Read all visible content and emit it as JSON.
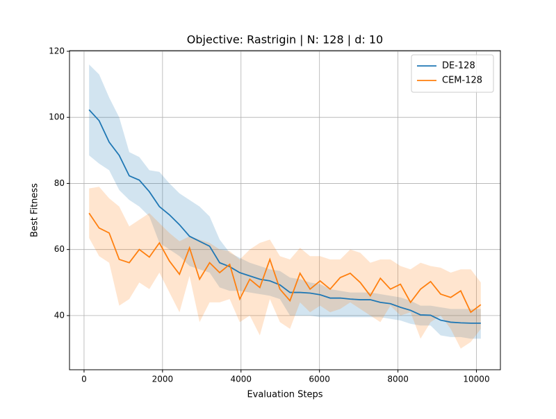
{
  "chart_data": {
    "type": "line",
    "title": "Objective: Rastrigin | N: 128 | d: 10",
    "x_label": "Evaluation Steps",
    "y_label": "Best Fitness",
    "x": [
      128,
      384,
      640,
      896,
      1152,
      1408,
      1664,
      1920,
      2176,
      2432,
      2688,
      2944,
      3200,
      3456,
      3712,
      3968,
      4224,
      4480,
      4736,
      4992,
      5248,
      5504,
      5760,
      6016,
      6272,
      6528,
      6784,
      7040,
      7296,
      7552,
      7808,
      8064,
      8320,
      8576,
      8832,
      9088,
      9344,
      9600,
      9856,
      10112
    ],
    "xlim": [
      -371,
      10611
    ],
    "xticks": [
      0,
      2000,
      4000,
      6000,
      8000,
      10000
    ],
    "ylim": [
      23.6,
      120.2
    ],
    "yticks": [
      40,
      60,
      80,
      100,
      120
    ],
    "grid": true,
    "legend": "upper right",
    "series": [
      {
        "name": "DE-128",
        "color": "#1f77b4",
        "values": [
          102.3,
          99,
          92.5,
          88.5,
          82.3,
          81,
          77.5,
          73,
          70.5,
          67.5,
          64,
          62.5,
          61,
          56,
          54.8,
          53,
          52,
          51,
          50.5,
          49.3,
          47,
          47,
          46.8,
          46.3,
          45.3,
          45.3,
          45,
          44.8,
          44.8,
          44,
          43.6,
          42.5,
          41.6,
          40.2,
          40.1,
          38.6,
          38,
          37.8,
          37.7,
          37.7
        ],
        "upper": [
          116,
          113,
          106,
          100,
          89.5,
          88,
          84,
          83.5,
          80,
          77,
          75,
          73,
          70,
          63,
          59,
          57.5,
          56,
          55,
          54,
          53.5,
          51.5,
          51,
          50,
          49.5,
          48,
          47.5,
          47,
          47,
          47,
          46.5,
          46,
          45.5,
          44.5,
          43,
          43,
          42.5,
          42,
          42,
          42,
          42
        ],
        "lower": [
          88.5,
          86,
          84,
          78,
          75,
          73,
          70,
          62,
          60,
          58,
          55,
          54,
          53,
          48.5,
          47.5,
          47.5,
          47,
          46.5,
          46,
          45,
          40,
          40,
          40,
          39.5,
          39.5,
          39.5,
          39.5,
          39.5,
          39.5,
          39.5,
          39,
          38.5,
          37.5,
          37,
          37,
          34,
          33.5,
          33.5,
          33,
          33
        ]
      },
      {
        "name": "CEM-128",
        "color": "#ff7f0e",
        "values": [
          71,
          66.5,
          65,
          57,
          56,
          60,
          57.7,
          62,
          56.5,
          52.5,
          60.5,
          51,
          56,
          53,
          55.5,
          45,
          51,
          48.5,
          57,
          48,
          44.5,
          52.8,
          48,
          50.5,
          48,
          51.5,
          52.8,
          50,
          46,
          51.3,
          48,
          49.5,
          44,
          48,
          50.3,
          46.5,
          45.5,
          47.5,
          41,
          43.3
        ],
        "upper": [
          78.5,
          79,
          75.5,
          73,
          67,
          69,
          71,
          68,
          65,
          62.5,
          64,
          63,
          62,
          60,
          59.5,
          57,
          60,
          62,
          63,
          58,
          57,
          60.5,
          58,
          58,
          57,
          57,
          60,
          59,
          56,
          57,
          57,
          55,
          54,
          56,
          55,
          54.5,
          53,
          54,
          54,
          50
        ],
        "lower": [
          63.5,
          58,
          56,
          43,
          45,
          50,
          48,
          53,
          47,
          41,
          52,
          38,
          44,
          44,
          45,
          38,
          40,
          34,
          45,
          38,
          36,
          44,
          41,
          43,
          41,
          42,
          44,
          42,
          40,
          38,
          43,
          40,
          41,
          33,
          38,
          40,
          36,
          30,
          32,
          36
        ]
      }
    ]
  }
}
